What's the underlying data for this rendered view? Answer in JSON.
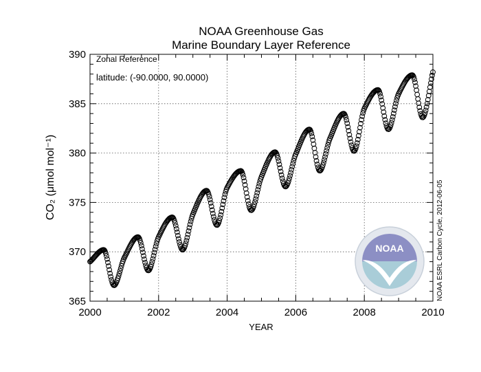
{
  "chart_data": {
    "type": "scatter",
    "title": "NOAA Greenhouse Gas",
    "subtitle": "Marine Boundary Layer Reference",
    "xlabel": "YEAR",
    "ylabel": "CO₂ (μmol mol⁻¹)",
    "xlim": [
      2000,
      2010
    ],
    "ylim": [
      365,
      390
    ],
    "x_ticks": [
      "2000",
      "2002",
      "2004",
      "2006",
      "2008",
      "2010"
    ],
    "y_ticks": [
      "365",
      "370",
      "375",
      "380",
      "385",
      "390"
    ],
    "grid": true,
    "annotation_line1": "Zonal Reference",
    "annotation_line2": "latitude: (-90.0000, 90.0000)",
    "credit": "NOAA ESRL Carbon Cycle, 2012-06-05",
    "logo_text": "NOAA",
    "marker": "open-circle",
    "series": [
      {
        "values": [
          [
            2000.0,
            369.0
          ],
          [
            2000.4,
            370.2
          ],
          [
            2000.7,
            366.6
          ],
          [
            2001.0,
            369.4
          ],
          [
            2001.4,
            371.5
          ],
          [
            2001.7,
            368.1
          ],
          [
            2002.0,
            371.5
          ],
          [
            2002.4,
            373.5
          ],
          [
            2002.7,
            370.2
          ],
          [
            2003.0,
            373.8
          ],
          [
            2003.4,
            376.2
          ],
          [
            2003.7,
            372.7
          ],
          [
            2004.0,
            376.5
          ],
          [
            2004.4,
            378.2
          ],
          [
            2004.7,
            374.2
          ],
          [
            2005.0,
            377.6
          ],
          [
            2005.4,
            380.1
          ],
          [
            2005.7,
            376.6
          ],
          [
            2006.0,
            379.9
          ],
          [
            2006.4,
            382.4
          ],
          [
            2006.7,
            378.2
          ],
          [
            2007.0,
            381.5
          ],
          [
            2007.4,
            384.0
          ],
          [
            2007.7,
            380.2
          ],
          [
            2008.0,
            384.5
          ],
          [
            2008.4,
            386.4
          ],
          [
            2008.7,
            382.4
          ],
          [
            2009.0,
            386.0
          ],
          [
            2009.4,
            387.9
          ],
          [
            2009.7,
            383.6
          ],
          [
            2010.0,
            388.2
          ]
        ]
      }
    ]
  }
}
